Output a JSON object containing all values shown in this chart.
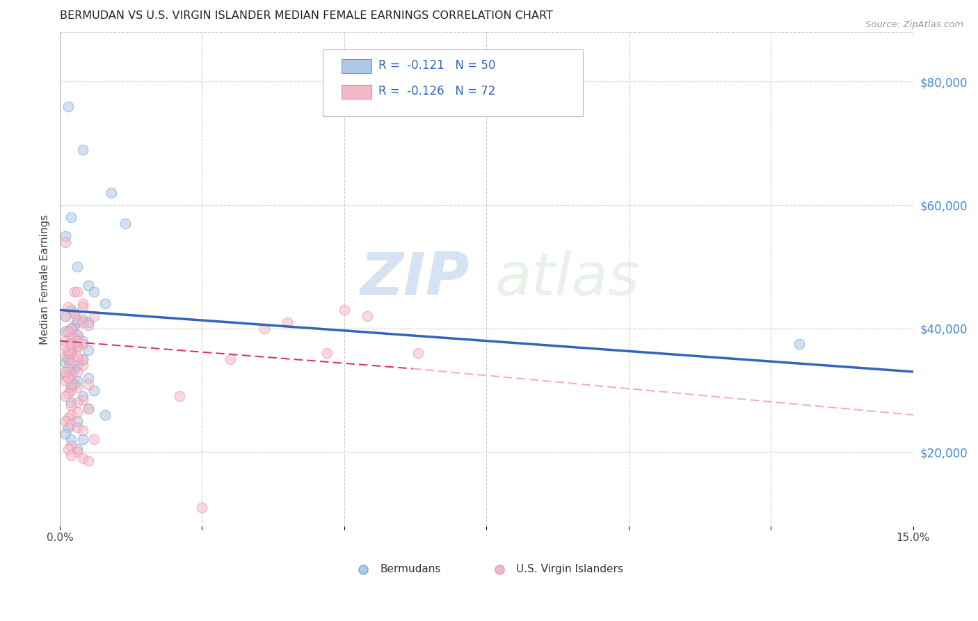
{
  "title": "BERMUDAN VS U.S. VIRGIN ISLANDER MEDIAN FEMALE EARNINGS CORRELATION CHART",
  "source": "Source: ZipAtlas.com",
  "ylabel": "Median Female Earnings",
  "xlim": [
    0.0,
    0.15
  ],
  "ylim": [
    8000,
    88000
  ],
  "xticks": [
    0.0,
    0.025,
    0.05,
    0.075,
    0.1,
    0.125,
    0.15
  ],
  "xticklabels": [
    "0.0%",
    "",
    "",
    "",
    "",
    "",
    "15.0%"
  ],
  "yticks_right": [
    20000,
    40000,
    60000,
    80000
  ],
  "ytick_labels_right": [
    "$20,000",
    "$40,000",
    "$60,000",
    "$80,000"
  ],
  "watermark_zip": "ZIP",
  "watermark_atlas": "atlas",
  "legend_r1": "R = ",
  "legend_r1_val": "-0.121",
  "legend_n1": "   N = ",
  "legend_n1_val": "50",
  "legend_r2": "R = ",
  "legend_r2_val": "-0.126",
  "legend_n2": "   N = ",
  "legend_n2_val": "72",
  "blue_scatter_x": [
    0.0015,
    0.004,
    0.009,
    0.002,
    0.001,
    0.0115,
    0.003,
    0.005,
    0.006,
    0.008,
    0.002,
    0.0025,
    0.001,
    0.004,
    0.003,
    0.005,
    0.0025,
    0.002,
    0.001,
    0.003,
    0.0025,
    0.004,
    0.002,
    0.003,
    0.005,
    0.002,
    0.0015,
    0.004,
    0.001,
    0.003,
    0.0025,
    0.002,
    0.001,
    0.005,
    0.003,
    0.0025,
    0.002,
    0.006,
    0.004,
    0.002,
    0.13,
    0.003,
    0.005,
    0.008,
    0.003,
    0.0015,
    0.001,
    0.002,
    0.004,
    0.0015
  ],
  "blue_scatter_y": [
    76000,
    69000,
    62000,
    58000,
    55000,
    57000,
    50000,
    47000,
    46000,
    44000,
    43000,
    42500,
    42000,
    41500,
    41000,
    41000,
    40500,
    40000,
    39500,
    39000,
    38500,
    38000,
    37500,
    37000,
    36500,
    36000,
    35500,
    35000,
    34500,
    34000,
    33500,
    33000,
    32500,
    32000,
    31500,
    31000,
    30500,
    30000,
    29000,
    28000,
    37500,
    20500,
    27000,
    26000,
    25000,
    24000,
    23000,
    22000,
    22000,
    35000
  ],
  "pink_scatter_x": [
    0.001,
    0.0025,
    0.003,
    0.004,
    0.0015,
    0.0025,
    0.001,
    0.003,
    0.004,
    0.005,
    0.002,
    0.0015,
    0.003,
    0.002,
    0.001,
    0.004,
    0.003,
    0.002,
    0.0015,
    0.001,
    0.003,
    0.002,
    0.004,
    0.0015,
    0.003,
    0.002,
    0.0015,
    0.001,
    0.005,
    0.003,
    0.002,
    0.0015,
    0.001,
    0.004,
    0.003,
    0.002,
    0.005,
    0.003,
    0.002,
    0.0015,
    0.001,
    0.002,
    0.003,
    0.004,
    0.006,
    0.002,
    0.0015,
    0.003,
    0.002,
    0.004,
    0.005,
    0.004,
    0.003,
    0.002,
    0.0015,
    0.001,
    0.002,
    0.003,
    0.006,
    0.004,
    0.002,
    0.0015,
    0.001,
    0.05,
    0.054,
    0.04,
    0.047,
    0.036,
    0.063,
    0.03,
    0.021,
    0.025
  ],
  "pink_scatter_y": [
    54000,
    46000,
    46000,
    44000,
    43500,
    42500,
    42000,
    41500,
    41000,
    40500,
    40000,
    39500,
    39000,
    38500,
    38000,
    37500,
    37000,
    36500,
    36000,
    35500,
    35000,
    34500,
    34000,
    33500,
    33000,
    32500,
    32000,
    31500,
    31000,
    30500,
    30000,
    29500,
    29000,
    28500,
    28000,
    27500,
    27000,
    26500,
    26000,
    25500,
    25000,
    24500,
    24000,
    23500,
    22000,
    21000,
    20500,
    20000,
    19500,
    19000,
    18500,
    35000,
    35500,
    36000,
    36500,
    37000,
    37500,
    38000,
    42000,
    43500,
    31000,
    32000,
    33000,
    43000,
    42000,
    41000,
    36000,
    40000,
    36000,
    35000,
    29000,
    11000
  ],
  "blue_line_x0": 0.0,
  "blue_line_x1": 0.15,
  "blue_line_y0": 43000,
  "blue_line_y1": 33000,
  "pink_line_x0": 0.0,
  "pink_line_x1": 0.062,
  "pink_line_y0": 38000,
  "pink_line_y1": 33500,
  "scatter_alpha": 0.55,
  "scatter_size": 110,
  "blue_face_color": "#adc8e8",
  "blue_edge_color": "#6699cc",
  "pink_face_color": "#f5b8c8",
  "pink_edge_color": "#e888a0",
  "grid_color": "#cccccc",
  "right_axis_color": "#4488cc",
  "background_color": "#ffffff",
  "title_color": "#222222",
  "source_color": "#999999"
}
